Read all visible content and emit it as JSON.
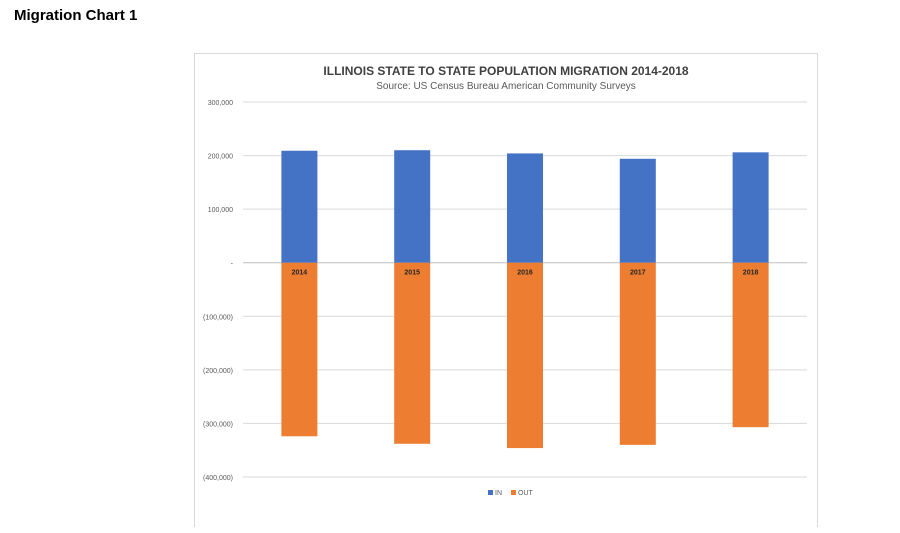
{
  "page": {
    "heading": "Migration Chart 1"
  },
  "chart_data": {
    "type": "bar",
    "stacked": true,
    "title": "ILLINOIS STATE TO STATE POPULATION MIGRATION 2014-2018",
    "subtitle": "Source: US Census Bureau American Community Surveys",
    "categories": [
      "2014",
      "2015",
      "2016",
      "2017",
      "2018"
    ],
    "series": [
      {
        "name": "IN",
        "color": "#4472c4",
        "values": [
          209000,
          210000,
          204000,
          194000,
          206000
        ]
      },
      {
        "name": "OUT",
        "color": "#ed7d31",
        "values": [
          -324000,
          -338000,
          -346000,
          -340000,
          -307000
        ]
      }
    ],
    "ylim": [
      -400000,
      300000
    ],
    "yticks": [
      300000,
      200000,
      100000,
      0,
      -100000,
      -200000,
      -300000,
      -400000
    ],
    "ytick_labels": [
      "300,000",
      "200,000",
      "100,000",
      "-",
      "(100,000)",
      "(200,000)",
      "(300,000)",
      "(400,000)"
    ],
    "grid": true,
    "legend": "bottom",
    "xlabel": "",
    "ylabel": ""
  }
}
